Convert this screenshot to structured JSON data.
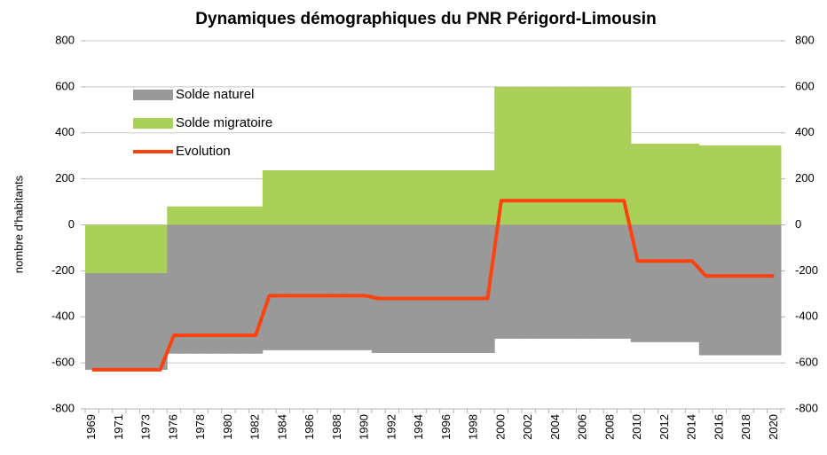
{
  "chart_data": {
    "type": "area",
    "title": "Dynamiques démographiques du PNR Périgord-Limousin",
    "y_label": "nombre d'habitants",
    "categories": [
      "1969",
      null,
      "1971",
      null,
      "1973",
      null,
      "1976",
      null,
      "1978",
      null,
      "1980",
      null,
      "1982",
      null,
      "1984",
      null,
      "1986",
      null,
      "1988",
      null,
      "1990",
      null,
      "1992",
      null,
      "1994",
      null,
      "1996",
      null,
      "1998",
      null,
      "2000",
      null,
      "2002",
      null,
      "2004",
      null,
      "2006",
      null,
      "2008",
      null,
      "2010",
      null,
      "2012",
      null,
      "2014",
      null,
      "2016",
      null,
      "2018",
      null,
      "2020"
    ],
    "series": [
      {
        "name": "Solde naturel",
        "mark": "area",
        "color": "#999999",
        "values": [
          -420,
          -420,
          -420,
          -420,
          -420,
          -420,
          -560,
          -560,
          -560,
          -560,
          -560,
          -560,
          -560,
          -545,
          -545,
          -545,
          -545,
          -545,
          -545,
          -545,
          -545,
          -557,
          -557,
          -557,
          -557,
          -557,
          -557,
          -557,
          -557,
          -557,
          -495,
          -495,
          -495,
          -495,
          -495,
          -495,
          -495,
          -495,
          -495,
          -495,
          -510,
          -510,
          -510,
          -510,
          -510,
          -567,
          -567,
          -567,
          -567,
          -567,
          -567
        ]
      },
      {
        "name": "Solde migratoire",
        "mark": "area",
        "color": "#aad05a",
        "values": [
          -210,
          -210,
          -210,
          -210,
          -210,
          -210,
          80,
          80,
          80,
          80,
          80,
          80,
          80,
          237,
          237,
          237,
          237,
          237,
          237,
          237,
          237,
          237,
          237,
          237,
          237,
          237,
          237,
          237,
          237,
          237,
          600,
          600,
          600,
          600,
          600,
          600,
          600,
          600,
          600,
          600,
          353,
          353,
          353,
          353,
          353,
          345,
          345,
          345,
          345,
          345,
          345
        ]
      },
      {
        "name": "Evolution",
        "mark": "line",
        "color": "#ff420e",
        "values": [
          -630,
          -630,
          -630,
          -630,
          -630,
          -630,
          -480,
          -480,
          -480,
          -480,
          -480,
          -480,
          -480,
          -308,
          -308,
          -308,
          -308,
          -308,
          -308,
          -308,
          -308,
          -320,
          -320,
          -320,
          -320,
          -320,
          -320,
          -320,
          -320,
          -320,
          105,
          105,
          105,
          105,
          105,
          105,
          105,
          105,
          105,
          105,
          -157,
          -157,
          -157,
          -157,
          -157,
          -222,
          -222,
          -222,
          -222,
          -222,
          -222
        ]
      }
    ],
    "ylim": [
      -800,
      800
    ],
    "yticks": [
      -800,
      -600,
      -400,
      -200,
      0,
      200,
      400,
      600,
      800
    ],
    "y2lim": [
      -800,
      800
    ],
    "y2ticks": [
      -800,
      -600,
      -400,
      -200,
      0,
      200,
      400,
      600,
      800
    ],
    "grid": true,
    "legend": "top-left"
  }
}
